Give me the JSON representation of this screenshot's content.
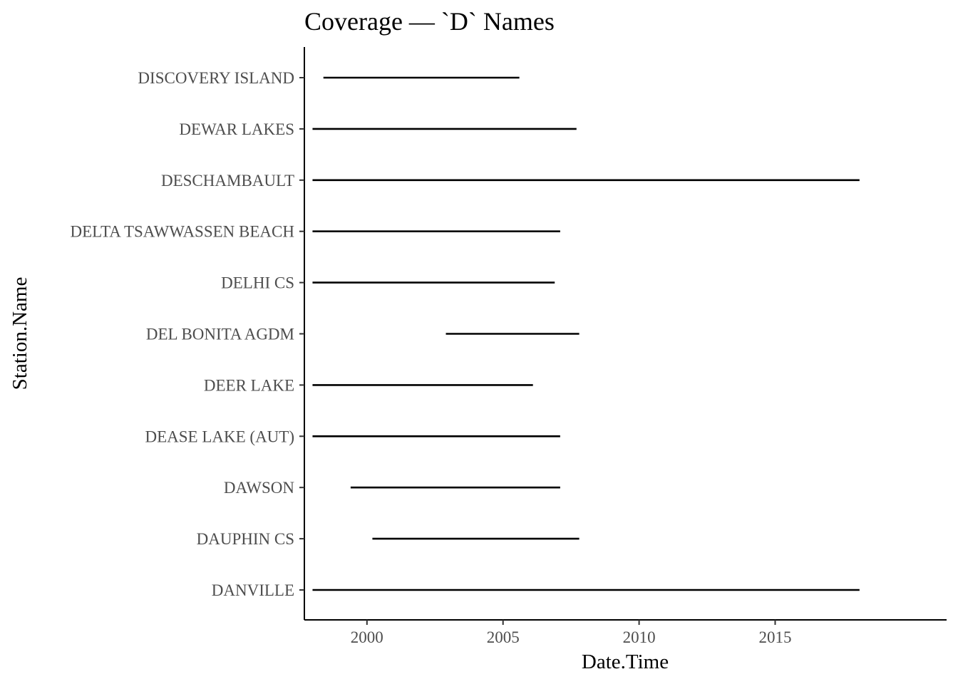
{
  "chart_data": {
    "type": "segment",
    "title": "Coverage — `D` Names",
    "xlabel": "Date.Time",
    "ylabel": "Station.Name",
    "xlim": [
      1997.7,
      2021.3
    ],
    "x_ticks": [
      2000,
      2005,
      2010,
      2015
    ],
    "grid": false,
    "legend": "none",
    "colors": {
      "segment": "#000000",
      "axis": "#000000",
      "tick_text": "#4d4d4d"
    },
    "stations": [
      {
        "name": "DANVILLE",
        "start": 1998.0,
        "end": 2018.1
      },
      {
        "name": "DAUPHIN CS",
        "start": 2000.2,
        "end": 2007.8
      },
      {
        "name": "DAWSON",
        "start": 1999.4,
        "end": 2007.1
      },
      {
        "name": "DEASE LAKE (AUT)",
        "start": 1998.0,
        "end": 2007.1
      },
      {
        "name": "DEER LAKE",
        "start": 1998.0,
        "end": 2006.1
      },
      {
        "name": "DEL BONITA AGDM",
        "start": 2002.9,
        "end": 2007.8
      },
      {
        "name": "DELHI CS",
        "start": 1998.0,
        "end": 2006.9
      },
      {
        "name": "DELTA TSAWWASSEN BEACH",
        "start": 1998.0,
        "end": 2007.1
      },
      {
        "name": "DESCHAMBAULT",
        "start": 1998.0,
        "end": 2018.1
      },
      {
        "name": "DEWAR LAKES",
        "start": 1998.0,
        "end": 2007.7
      },
      {
        "name": "DISCOVERY ISLAND",
        "start": 1998.4,
        "end": 2005.6
      }
    ]
  }
}
